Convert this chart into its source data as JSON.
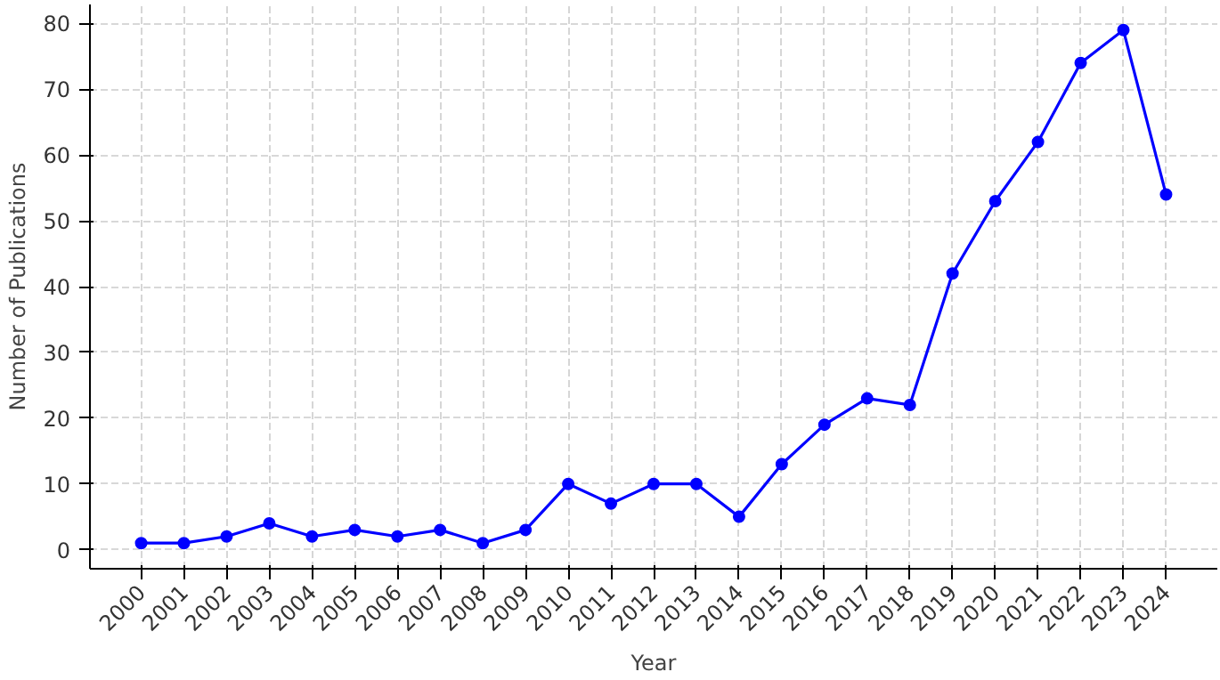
{
  "chart_data": {
    "type": "line",
    "xlabel": "Year",
    "ylabel": "Number of Publications",
    "x": [
      2000,
      2001,
      2002,
      2003,
      2004,
      2005,
      2006,
      2007,
      2008,
      2009,
      2010,
      2011,
      2012,
      2013,
      2014,
      2015,
      2016,
      2017,
      2018,
      2019,
      2020,
      2021,
      2022,
      2023,
      2024
    ],
    "series": [
      {
        "color": "#0000ff",
        "values": [
          1,
          1,
          2,
          4,
          2,
          3,
          2,
          3,
          1,
          3,
          10,
          7,
          10,
          10,
          5,
          13,
          19,
          23,
          22,
          42,
          53,
          62,
          74,
          79,
          54
        ]
      }
    ],
    "xlim": [
      1998.8,
      2025.2
    ],
    "xticks": [
      2000,
      2001,
      2002,
      2003,
      2004,
      2005,
      2006,
      2007,
      2008,
      2009,
      2010,
      2011,
      2012,
      2013,
      2014,
      2015,
      2016,
      2017,
      2018,
      2019,
      2020,
      2021,
      2022,
      2023,
      2024
    ],
    "ylim": [
      -2.9,
      82.9
    ],
    "yticks": [
      0,
      10,
      20,
      30,
      40,
      50,
      60,
      70,
      80
    ],
    "grid": true,
    "marker": "circle",
    "line_style": "solid"
  }
}
